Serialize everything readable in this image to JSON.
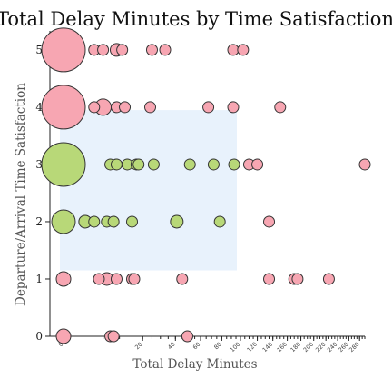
{
  "chart_data": {
    "type": "scatter",
    "title": "Total Delay Minutes by Time Satisfaction",
    "xlabel": "Total Delay Minutes",
    "ylabel": "Departure/Arrival Time Satisfaction",
    "x_scale": "sqrt",
    "xlim": [
      0,
      290
    ],
    "ylim": [
      0,
      5.3
    ],
    "x_ticks": [
      0,
      20,
      40,
      60,
      80,
      100,
      120,
      140,
      160,
      180,
      200,
      220,
      240,
      260,
      280
    ],
    "y_ticks": [
      0,
      1,
      2,
      3,
      4,
      5
    ],
    "grid": false,
    "legend": "none",
    "selection_region": {
      "x": [
        0,
        96
      ],
      "y": [
        1.15,
        3.95
      ],
      "color": "#e8f2fc"
    },
    "colors": {
      "pink": "#f7a6b2",
      "green": "#b8d878"
    },
    "series": [
      {
        "color_key": "pink",
        "points": [
          {
            "x": 0,
            "y": 5,
            "size": 24
          },
          {
            "x": 3,
            "y": 5,
            "size": 6
          },
          {
            "x": 5,
            "y": 5,
            "size": 6
          },
          {
            "x": 9,
            "y": 5,
            "size": 7
          },
          {
            "x": 11,
            "y": 5,
            "size": 6
          },
          {
            "x": 25,
            "y": 5,
            "size": 6
          },
          {
            "x": 33,
            "y": 5,
            "size": 6
          },
          {
            "x": 92,
            "y": 5,
            "size": 6
          },
          {
            "x": 103,
            "y": 5,
            "size": 6
          },
          {
            "x": 0,
            "y": 4,
            "size": 24
          },
          {
            "x": 3,
            "y": 4,
            "size": 6
          },
          {
            "x": 5,
            "y": 4,
            "size": 9
          },
          {
            "x": 9,
            "y": 4,
            "size": 6
          },
          {
            "x": 12,
            "y": 4,
            "size": 6
          },
          {
            "x": 24,
            "y": 4,
            "size": 6
          },
          {
            "x": 67,
            "y": 4,
            "size": 6
          },
          {
            "x": 92,
            "y": 4,
            "size": 6
          },
          {
            "x": 150,
            "y": 4,
            "size": 6
          },
          {
            "x": 110,
            "y": 3,
            "size": 6
          },
          {
            "x": 120,
            "y": 3,
            "size": 6
          },
          {
            "x": 290,
            "y": 3,
            "size": 6
          },
          {
            "x": 135,
            "y": 2,
            "size": 6
          },
          {
            "x": 0,
            "y": 1,
            "size": 8
          },
          {
            "x": 4,
            "y": 1,
            "size": 6
          },
          {
            "x": 6,
            "y": 1,
            "size": 7
          },
          {
            "x": 9,
            "y": 1,
            "size": 6
          },
          {
            "x": 15,
            "y": 1,
            "size": 6
          },
          {
            "x": 16,
            "y": 1,
            "size": 6
          },
          {
            "x": 45,
            "y": 1,
            "size": 6
          },
          {
            "x": 135,
            "y": 1,
            "size": 6
          },
          {
            "x": 170,
            "y": 1,
            "size": 6
          },
          {
            "x": 175,
            "y": 1,
            "size": 6
          },
          {
            "x": 225,
            "y": 1,
            "size": 6
          },
          {
            "x": 0,
            "y": 0,
            "size": 8
          },
          {
            "x": 7,
            "y": 0,
            "size": 6
          },
          {
            "x": 8,
            "y": 0,
            "size": 6
          },
          {
            "x": 49,
            "y": 0,
            "size": 6
          }
        ]
      },
      {
        "color_key": "green",
        "points": [
          {
            "x": 0,
            "y": 3,
            "size": 24
          },
          {
            "x": 7,
            "y": 3,
            "size": 6
          },
          {
            "x": 9,
            "y": 3,
            "size": 6
          },
          {
            "x": 13,
            "y": 3,
            "size": 6
          },
          {
            "x": 17,
            "y": 3,
            "size": 6
          },
          {
            "x": 18,
            "y": 3,
            "size": 6
          },
          {
            "x": 26,
            "y": 3,
            "size": 6
          },
          {
            "x": 51,
            "y": 3,
            "size": 6
          },
          {
            "x": 72,
            "y": 3,
            "size": 6
          },
          {
            "x": 93,
            "y": 3,
            "size": 6
          },
          {
            "x": 0,
            "y": 2,
            "size": 13
          },
          {
            "x": 1.5,
            "y": 2,
            "size": 7
          },
          {
            "x": 3,
            "y": 2,
            "size": 6
          },
          {
            "x": 6,
            "y": 2,
            "size": 6
          },
          {
            "x": 8,
            "y": 2,
            "size": 6
          },
          {
            "x": 15,
            "y": 2,
            "size": 6
          },
          {
            "x": 41,
            "y": 2,
            "size": 7
          },
          {
            "x": 78,
            "y": 2,
            "size": 6
          }
        ]
      }
    ]
  }
}
